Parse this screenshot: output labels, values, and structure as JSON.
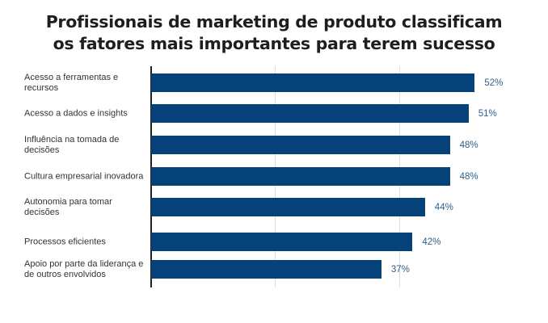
{
  "chart_data": {
    "type": "bar",
    "orientation": "horizontal",
    "title": "Profissionais de marketing de produto classificam os fatores mais importantes para terem sucesso",
    "title_lines": [
      "Profissionais de marketing de produto classificam",
      "os fatores mais importantes para terem sucesso"
    ],
    "categories": [
      "Acesso a ferramentas e recursos",
      "Acesso a dados e insights",
      "Influência na tomada de decisões",
      "Cultura empresarial inovadora",
      "Autonomia para tomar decisões",
      "Processos eficientes",
      "Apoio por parte da liderança e de outros envolvidos"
    ],
    "values": [
      52,
      51,
      48,
      48,
      44,
      42,
      37
    ],
    "value_labels": [
      "52%",
      "51%",
      "48%",
      "48%",
      "44%",
      "42%",
      "37%"
    ],
    "xlabel": "",
    "ylabel": "",
    "xlim": [
      0,
      60
    ],
    "grid": true,
    "gridlines_at": [
      0,
      20,
      40
    ],
    "legend": null,
    "bar_color": "#054279",
    "label_color": "#2d5f8c"
  }
}
